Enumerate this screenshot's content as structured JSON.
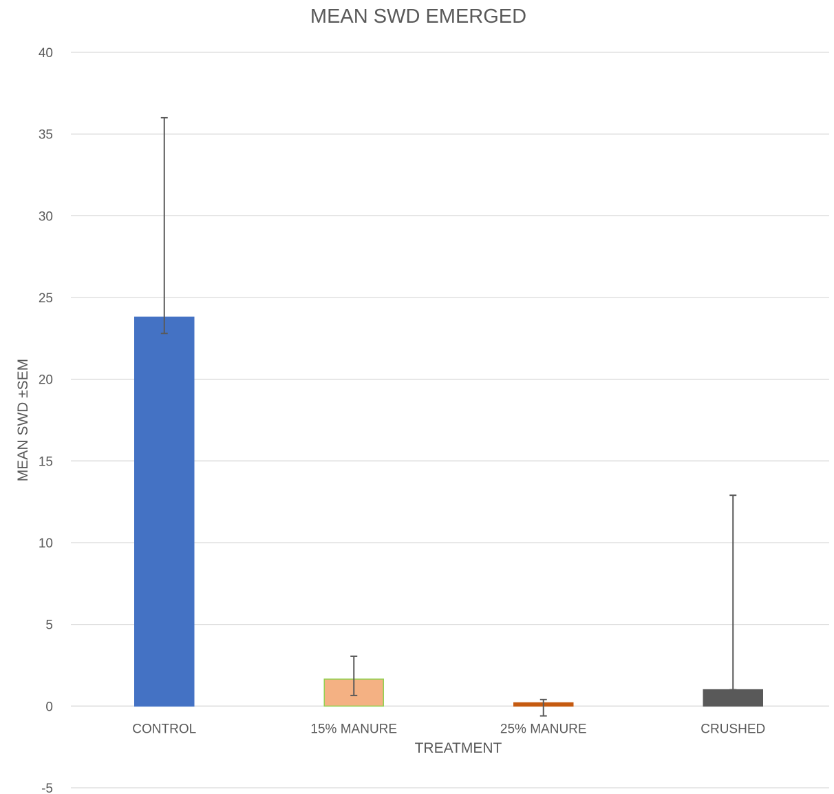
{
  "chart_data": {
    "type": "bar",
    "title": "MEAN SWD EMERGED",
    "xlabel": "TREATMENT",
    "ylabel": "MEAN SWD ±SEM",
    "ylim": [
      -5,
      40
    ],
    "yticks": [
      -5,
      0,
      5,
      10,
      15,
      20,
      25,
      30,
      35,
      40
    ],
    "grid": true,
    "legend": "none",
    "categories": [
      "CONTROL",
      "15% MANURE",
      "25% MANURE",
      "CRUSHED"
    ],
    "values": [
      23.8,
      1.65,
      0.2,
      1.0
    ],
    "error_plus": [
      12.2,
      1.4,
      0.2,
      11.9
    ],
    "error_minus": [
      1.0,
      1.0,
      0.8,
      0.0
    ],
    "colors": [
      "#4472c4",
      "#f4b183",
      "#c55a11",
      "#595959"
    ],
    "outline_colors": [
      "#4472c4",
      "#92d050",
      "#c55a11",
      "#595959"
    ]
  }
}
